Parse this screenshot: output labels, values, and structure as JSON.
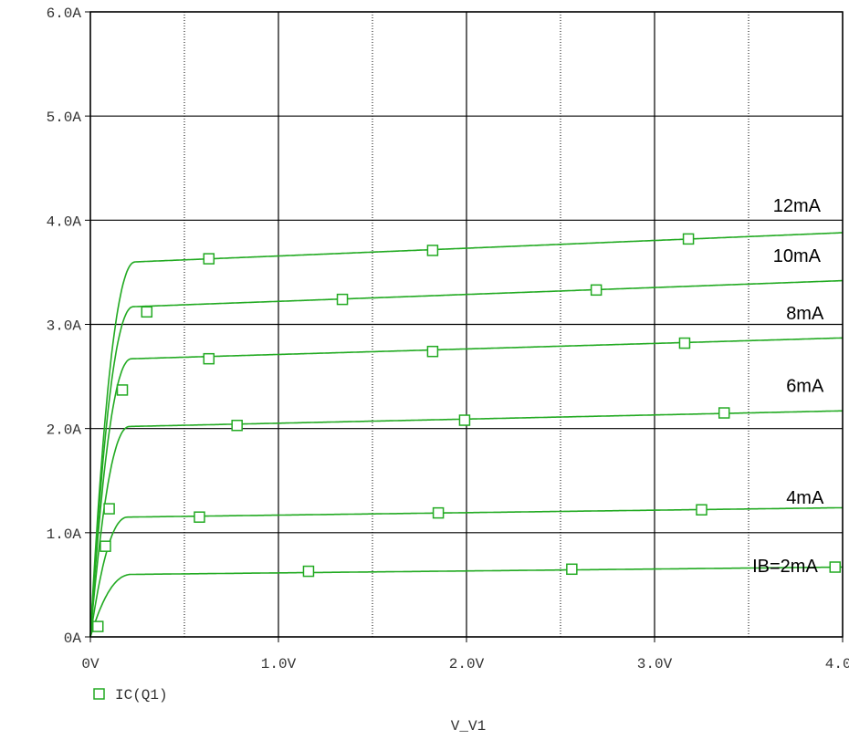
{
  "chart_data": {
    "type": "line",
    "xlabel": "V_V1",
    "ylabel": "",
    "title": "",
    "xlim": [
      0,
      4
    ],
    "ylim": [
      0,
      6
    ],
    "x_ticks": [
      0,
      1,
      2,
      3,
      4
    ],
    "x_tick_labels": [
      "0V",
      "1.0V",
      "2.0V",
      "3.0V",
      "4.0V"
    ],
    "y_ticks": [
      0,
      1,
      2,
      3,
      4,
      5,
      6
    ],
    "y_tick_labels": [
      "0A",
      "1.0A",
      "2.0A",
      "3.0A",
      "4.0A",
      "5.0A",
      "6.0A"
    ],
    "grid": true,
    "line_color": "#22aa22",
    "legend": {
      "label": "IC(Q1)",
      "position": "bottom-left"
    },
    "series": [
      {
        "label": "IB=2mA",
        "sat": 0.6,
        "end": 0.67,
        "knee": 0.22,
        "markers": [
          [
            0.04,
            0.1
          ],
          [
            1.16,
            0.63
          ],
          [
            2.56,
            0.65
          ],
          [
            3.96,
            0.67
          ]
        ]
      },
      {
        "label": "4mA",
        "sat": 1.15,
        "end": 1.24,
        "knee": 0.2,
        "markers": [
          [
            0.08,
            0.87
          ],
          [
            0.58,
            1.15
          ],
          [
            1.85,
            1.19
          ],
          [
            3.25,
            1.22
          ]
        ]
      },
      {
        "label": "6mA",
        "sat": 2.02,
        "end": 2.17,
        "knee": 0.21,
        "markers": [
          [
            0.78,
            2.03
          ],
          [
            1.99,
            2.08
          ],
          [
            3.37,
            2.15
          ]
        ]
      },
      {
        "label": "8mA",
        "sat": 2.67,
        "end": 2.87,
        "knee": 0.22,
        "markers": [
          [
            0.1,
            1.23
          ],
          [
            0.63,
            2.67
          ],
          [
            1.82,
            2.74
          ],
          [
            3.16,
            2.82
          ]
        ]
      },
      {
        "label": "10mA",
        "sat": 3.17,
        "end": 3.42,
        "knee": 0.23,
        "markers": [
          [
            0.17,
            2.37
          ],
          [
            1.34,
            3.24
          ],
          [
            2.69,
            3.33
          ]
        ]
      },
      {
        "label": "12mA",
        "sat": 3.6,
        "end": 3.88,
        "knee": 0.24,
        "markers": [
          [
            0.3,
            3.12
          ],
          [
            0.63,
            3.63
          ],
          [
            1.82,
            3.71
          ],
          [
            3.18,
            3.82
          ]
        ]
      }
    ],
    "annotations": [
      {
        "text": "12mA",
        "x": 3.63,
        "y": 4.08
      },
      {
        "text": "10mA",
        "x": 3.63,
        "y": 3.6
      },
      {
        "text": "8mA",
        "x": 3.7,
        "y": 3.05
      },
      {
        "text": "6mA",
        "x": 3.7,
        "y": 2.35
      },
      {
        "text": "4mA",
        "x": 3.7,
        "y": 1.28
      },
      {
        "text": "IB=2mA",
        "x": 3.52,
        "y": 0.62
      }
    ]
  }
}
